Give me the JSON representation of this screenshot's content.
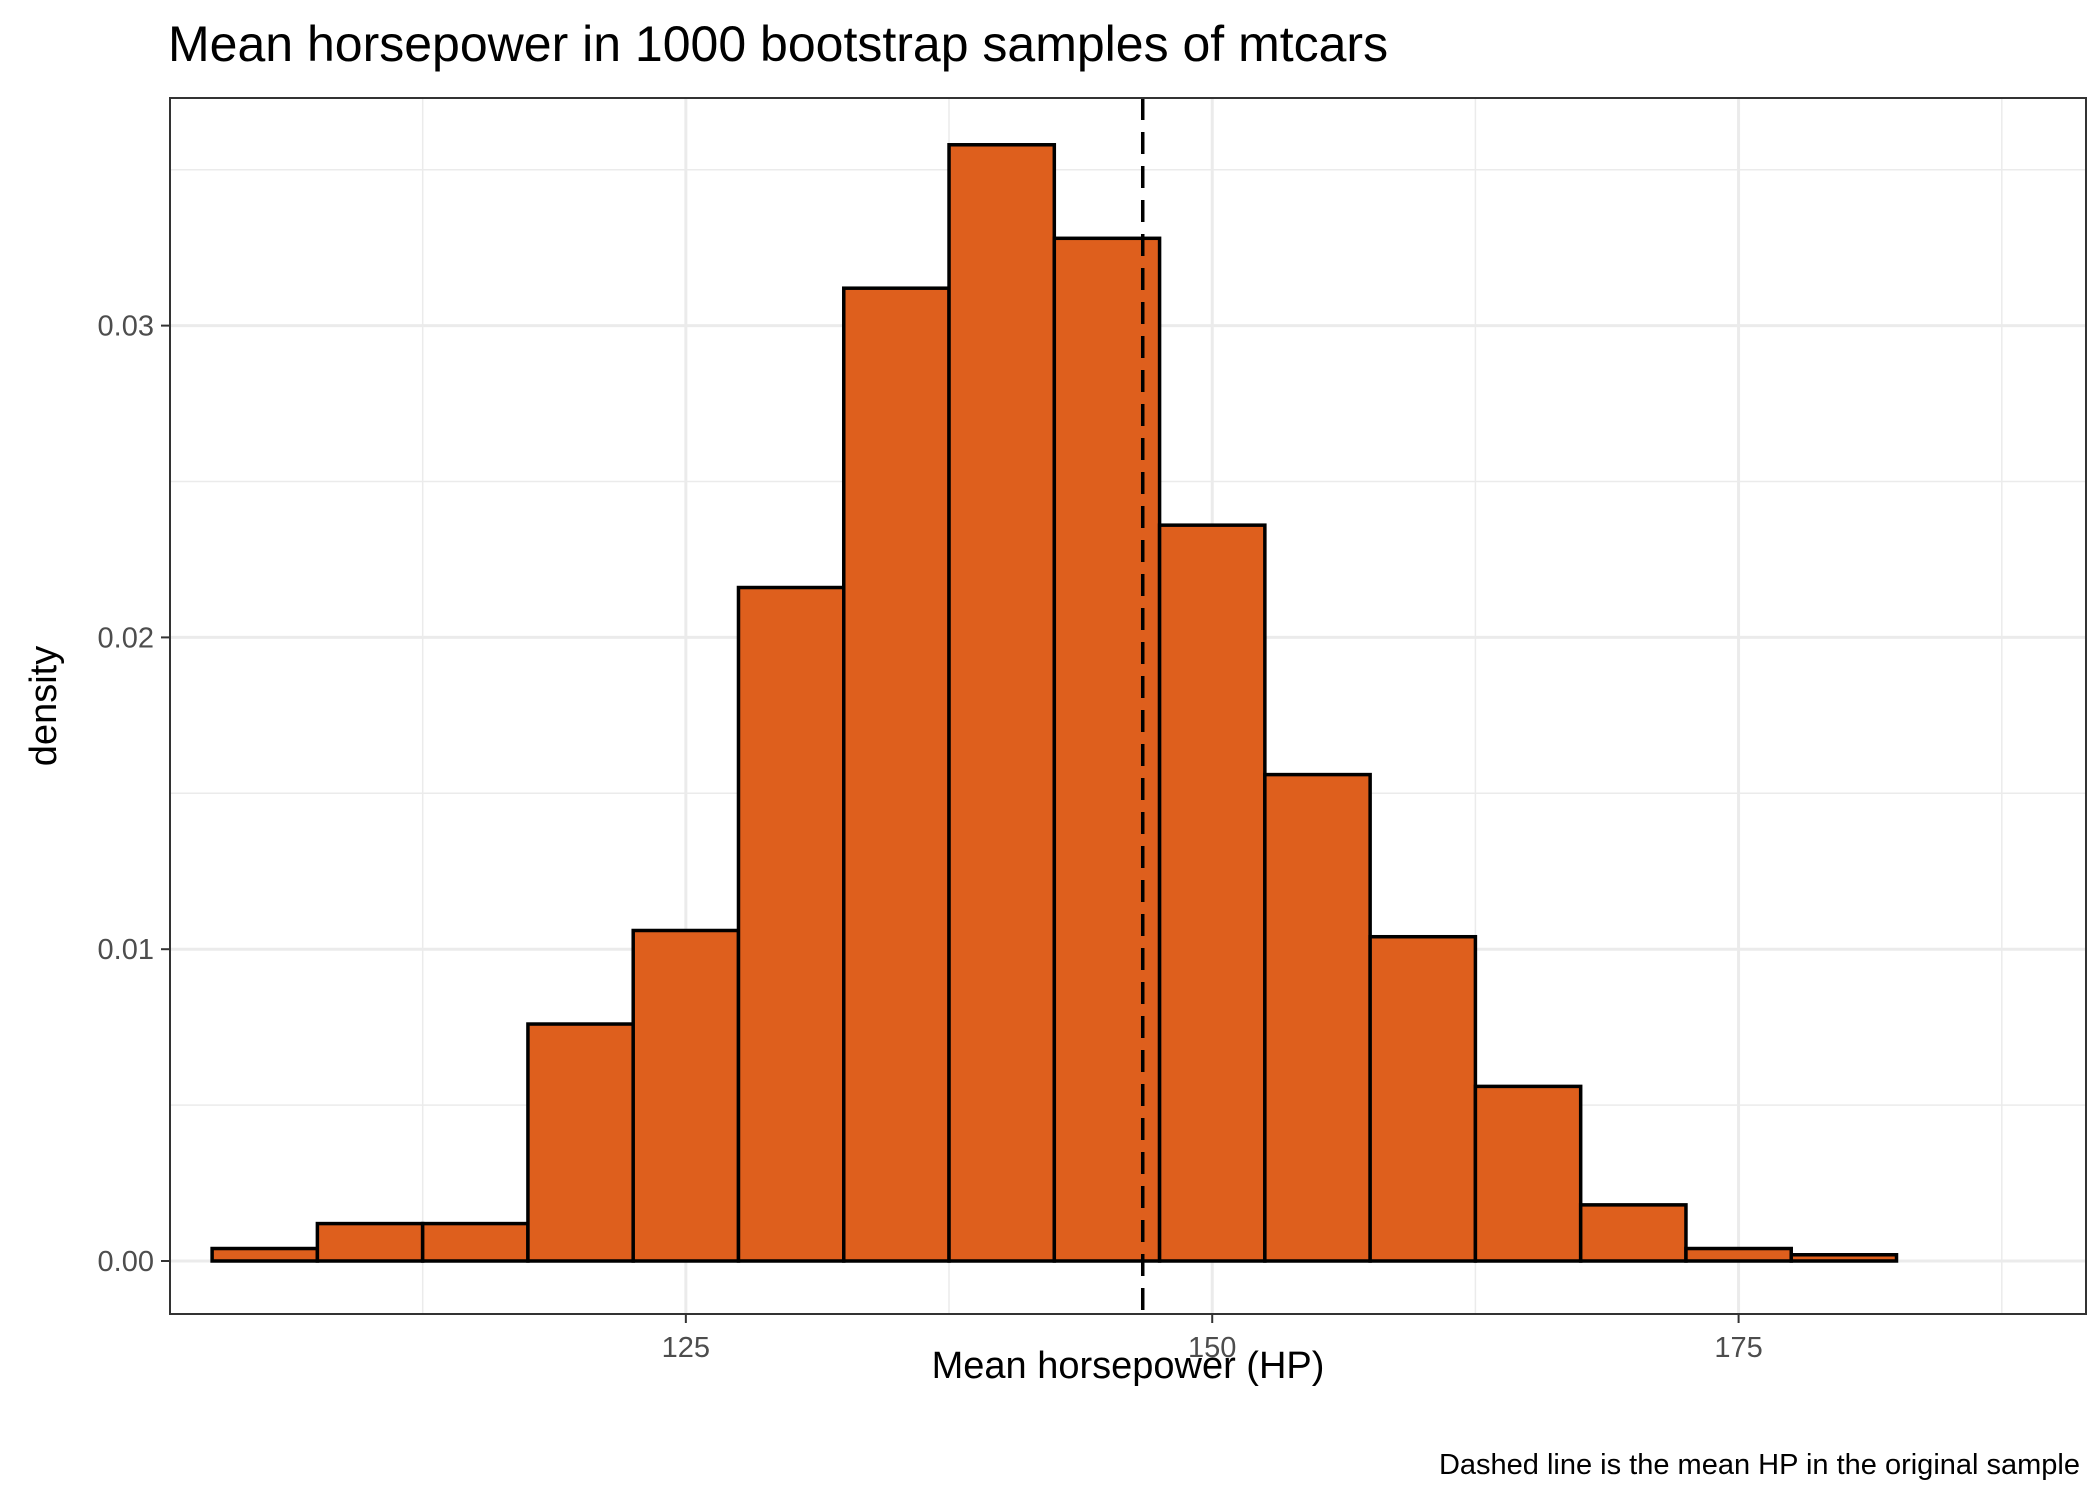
{
  "chart_data": {
    "type": "bar",
    "title": "Mean horsepower in 1000 bootstrap samples of mtcars",
    "xlabel": "Mean horsepower (HP)",
    "ylabel": "density",
    "caption": "Dashed line is the mean HP in the original sample",
    "xlim": [
      100.5,
      191.5
    ],
    "ylim": [
      -0.0017,
      0.0373
    ],
    "x_ticks": [
      125,
      150,
      175
    ],
    "x_tick_labels": [
      "125",
      "150",
      "175"
    ],
    "y_ticks": [
      0,
      0.01,
      0.02,
      0.03
    ],
    "y_tick_labels": [
      "0.00",
      "0.01",
      "0.02",
      "0.03"
    ],
    "bin_width": 5,
    "bins": [
      {
        "x0": 102.5,
        "x1": 107.5,
        "value": 0.0004
      },
      {
        "x0": 107.5,
        "x1": 112.5,
        "value": 0.0012
      },
      {
        "x0": 112.5,
        "x1": 117.5,
        "value": 0.0012
      },
      {
        "x0": 117.5,
        "x1": 122.5,
        "value": 0.0076
      },
      {
        "x0": 122.5,
        "x1": 127.5,
        "value": 0.0106
      },
      {
        "x0": 127.5,
        "x1": 132.5,
        "value": 0.0216
      },
      {
        "x0": 132.5,
        "x1": 137.5,
        "value": 0.0312
      },
      {
        "x0": 137.5,
        "x1": 142.5,
        "value": 0.0358
      },
      {
        "x0": 142.5,
        "x1": 147.5,
        "value": 0.0328
      },
      {
        "x0": 147.5,
        "x1": 152.5,
        "value": 0.0236
      },
      {
        "x0": 152.5,
        "x1": 157.5,
        "value": 0.0156
      },
      {
        "x0": 157.5,
        "x1": 162.5,
        "value": 0.0104
      },
      {
        "x0": 162.5,
        "x1": 167.5,
        "value": 0.0056
      },
      {
        "x0": 167.5,
        "x1": 172.5,
        "value": 0.0018
      },
      {
        "x0": 172.5,
        "x1": 177.5,
        "value": 0.0004
      },
      {
        "x0": 177.5,
        "x1": 182.5,
        "value": 0.0002
      }
    ],
    "reference_line": {
      "x": 146.7,
      "style": "dashed",
      "color": "#000000"
    },
    "bar_fill": "#de5f1d",
    "bar_stroke": "#000000",
    "grid": true,
    "legend": "none"
  }
}
